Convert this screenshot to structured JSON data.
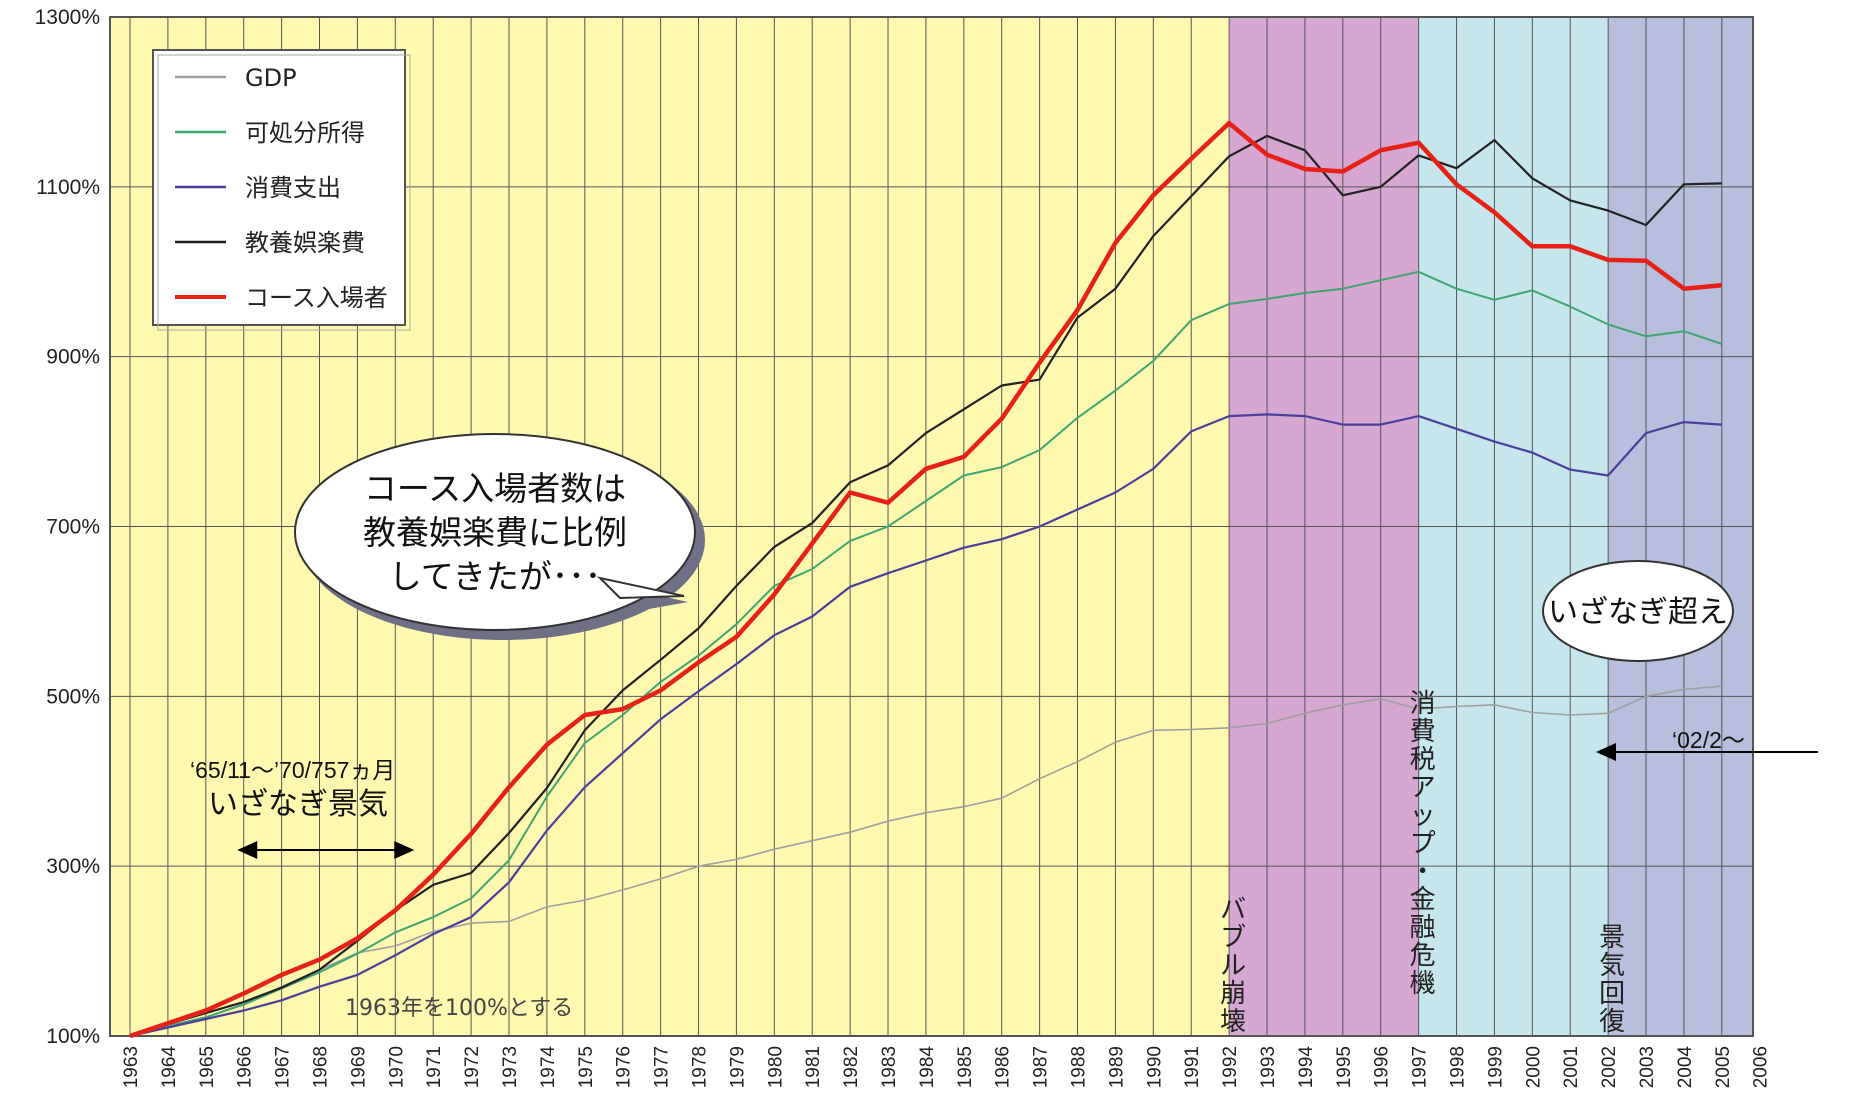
{
  "chart_data": {
    "type": "line",
    "x": [
      1963,
      1964,
      1965,
      1966,
      1967,
      1968,
      1969,
      1970,
      1971,
      1972,
      1973,
      1974,
      1975,
      1976,
      1977,
      1978,
      1979,
      1980,
      1981,
      1982,
      1983,
      1984,
      1985,
      1986,
      1987,
      1988,
      1989,
      1990,
      1991,
      1992,
      1993,
      1994,
      1995,
      1996,
      1997,
      1998,
      1999,
      2000,
      2001,
      2002,
      2003,
      2004,
      2005,
      2006
    ],
    "x_tick_labels": [
      "1963",
      "1964",
      "1965",
      "1966",
      "1967",
      "1968",
      "1969",
      "1970",
      "1971",
      "1972",
      "1973",
      "1974",
      "1975",
      "1976",
      "1977",
      "1978",
      "1979",
      "1980",
      "1981",
      "1982",
      "1983",
      "1984",
      "1985",
      "1986",
      "1987",
      "1988",
      "1989",
      "1990",
      "1991",
      "1992",
      "1993",
      "1994",
      "1995",
      "1996",
      "1997",
      "1998",
      "1999",
      "2000",
      "2001",
      "2002",
      "2003",
      "2004",
      "2005",
      "2006"
    ],
    "y_tick_labels": [
      "100%",
      "300%",
      "500%",
      "700%",
      "900%",
      "1100%",
      "1300%"
    ],
    "ylim": [
      100,
      1300
    ],
    "grid": true,
    "legend_position": "top-left",
    "note": "1963年を100%とする",
    "series": [
      {
        "name": "GDP",
        "color": "#a0a0a0",
        "values": [
          100,
          112,
          122,
          138,
          158,
          178,
          198,
          206,
          223,
          233,
          235,
          252,
          260,
          272,
          285,
          300,
          308,
          320,
          330,
          340,
          353,
          363,
          370,
          380,
          403,
          423,
          446,
          460,
          461,
          463,
          468,
          480,
          490,
          497,
          485,
          488,
          490,
          481,
          478,
          480,
          500,
          508,
          512,
          null
        ]
      },
      {
        "name": "可処分所得",
        "color": "#3fa670",
        "values": [
          100,
          112,
          122,
          137,
          156,
          175,
          197,
          222,
          240,
          262,
          307,
          382,
          445,
          478,
          517,
          548,
          585,
          630,
          650,
          683,
          700,
          730,
          760,
          770,
          790,
          828,
          860,
          895,
          943,
          962,
          968,
          975,
          980,
          990,
          1000,
          980,
          967,
          978,
          959,
          938,
          924,
          930,
          915,
          null
        ]
      },
      {
        "name": "消費支出",
        "color": "#4b3f9c",
        "values": [
          100,
          110,
          120,
          130,
          142,
          158,
          172,
          195,
          220,
          240,
          281,
          342,
          393,
          433,
          473,
          506,
          538,
          572,
          594,
          629,
          645,
          660,
          675,
          685,
          700,
          720,
          740,
          768,
          812,
          830,
          832,
          830,
          820,
          820,
          830,
          815,
          800,
          787,
          767,
          760,
          810,
          823,
          820,
          null
        ]
      },
      {
        "name": "教養娯楽費",
        "color": "#222222",
        "values": [
          100,
          114,
          127,
          140,
          157,
          178,
          212,
          248,
          278,
          292,
          339,
          392,
          460,
          507,
          543,
          580,
          630,
          676,
          704,
          752,
          772,
          810,
          838,
          866,
          873,
          946,
          980,
          1042,
          1089,
          1136,
          1160,
          1143,
          1090,
          1100,
          1137,
          1122,
          1155,
          1110,
          1084,
          1072,
          1055,
          1103,
          1104,
          null
        ]
      },
      {
        "name": "コース入場者",
        "color": "#e82116",
        "values": [
          100,
          115,
          130,
          150,
          172,
          190,
          215,
          248,
          290,
          338,
          393,
          443,
          478,
          485,
          507,
          540,
          570,
          620,
          680,
          740,
          728,
          768,
          782,
          827,
          893,
          955,
          1034,
          1090,
          1133,
          1175,
          1138,
          1121,
          1118,
          1143,
          1152,
          1103,
          1070,
          1030,
          1030,
          1014,
          1013,
          980,
          984,
          null
        ]
      }
    ],
    "periods": [
      {
        "label": "",
        "from": 1963,
        "to": 1992,
        "color": "#fff9b0"
      },
      {
        "label": "",
        "from": 1992,
        "to": 1997,
        "color": "#d7a6d3"
      },
      {
        "label": "",
        "from": 1997,
        "to": 2002,
        "color": "#c6e6ee"
      },
      {
        "label": "",
        "from": 2002,
        "to": 2006.3,
        "color": "#b8bedd"
      }
    ],
    "vertical_labels": [
      {
        "text": "バブル崩壊",
        "year": 1992
      },
      {
        "text": "消費税アップ・金融危機",
        "year": 1997
      },
      {
        "text": "景気回復",
        "year": 2002
      }
    ]
  },
  "annotations": {
    "bubble_lines": [
      "コース入場者数は",
      "教養娯楽費に比例",
      "してきたが･･･"
    ],
    "izanagi_period": "‘65/11～’70/757ヵ月",
    "izanagi_label": "いざなぎ景気",
    "izanagi_from": 1965.83,
    "izanagi_to": 1970.5,
    "oval_label": "いざなぎ超え",
    "from_label": "‘02/2～"
  }
}
